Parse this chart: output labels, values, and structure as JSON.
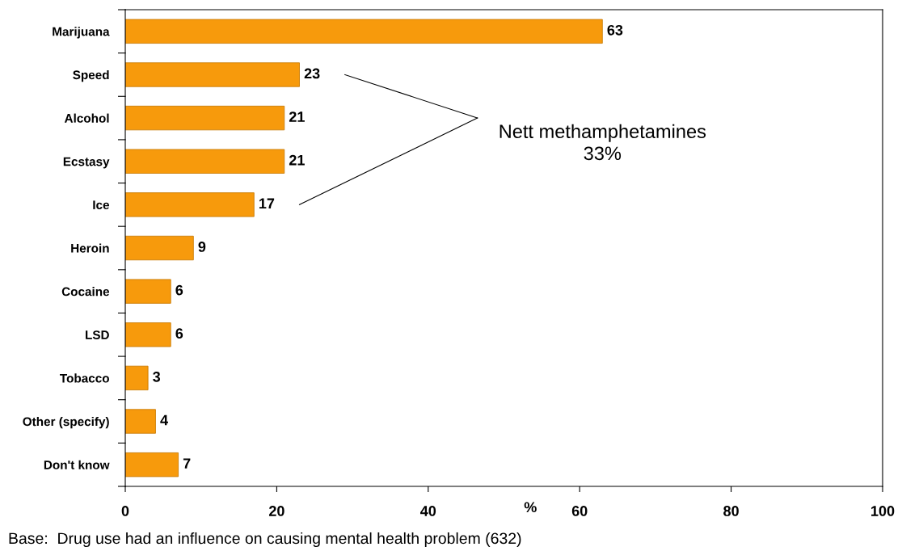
{
  "chart_data": {
    "type": "bar",
    "orientation": "horizontal",
    "categories": [
      "Marijuana",
      "Speed",
      "Alcohol",
      "Ecstasy",
      "Ice",
      "Heroin",
      "Cocaine",
      "LSD",
      "Tobacco",
      "Other (specify)",
      "Don't know"
    ],
    "values": [
      63,
      23,
      21,
      21,
      17,
      9,
      6,
      6,
      3,
      4,
      7
    ],
    "color": "#f79a0c",
    "xlim": [
      0,
      100
    ],
    "xticks": [
      0,
      20,
      40,
      60,
      80,
      100
    ],
    "xlabel": "%",
    "data_labels": true,
    "grid": false,
    "legend": false,
    "annotations": [
      "Nett methamphetamines\n33%",
      "Base:  Drug use had an influence on causing mental health problem (632)"
    ]
  }
}
